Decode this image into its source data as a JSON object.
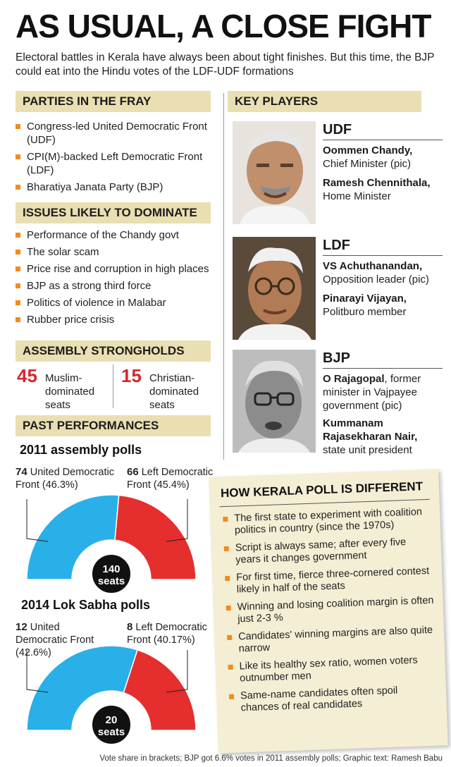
{
  "header": {
    "title": "AS USUAL, A CLOSE FIGHT",
    "intro": "Electoral battles in Kerala have always been about tight finishes. But this time, the BJP could eat into the Hindu votes of the LDF-UDF formations"
  },
  "parties": {
    "heading": "PARTIES IN THE FRAY",
    "items": [
      "Congress-led United Democratic Front (UDF)",
      "CPI(M)-backed Left Democratic Front (LDF)",
      "Bharatiya Janata Party (BJP)"
    ]
  },
  "issues": {
    "heading": "ISSUES LIKELY TO DOMINATE",
    "items": [
      "Performance of the Chandy govt",
      "The solar scam",
      "Price rise and corruption in high places",
      "BJP as a strong third force",
      "Politics of violence in Malabar",
      "Rubber price crisis"
    ]
  },
  "strongholds": {
    "heading": "ASSEMBLY STRONGHOLDS",
    "muslim": {
      "number": "45",
      "label": "Muslim-dominated seats"
    },
    "christian": {
      "number": "15",
      "label": "Christian-dominated seats"
    }
  },
  "past": {
    "heading": "PAST PERFORMANCES",
    "poll2011": {
      "title": "2011 assembly polls",
      "left_num": "74",
      "left_name": "United Democratic",
      "left_sub": "Front (46.3%)",
      "right_num": "66",
      "right_name": "Left Democratic",
      "right_sub": "Front (45.4%)",
      "total_num": "140",
      "total_word": "seats"
    },
    "poll2014": {
      "title": "2014 Lok Sabha polls",
      "left_num": "12",
      "left_name": "United",
      "left_sub1": "Democratic Front",
      "left_sub2": "(42.6%)",
      "right_num": "8",
      "right_name": "Left Democratic",
      "right_sub": "Front (40.17%)",
      "total_num": "20",
      "total_word": "seats"
    }
  },
  "chart_data": [
    {
      "type": "pie",
      "title": "2011 assembly polls",
      "categories": [
        "United Democratic Front",
        "Left Democratic Front"
      ],
      "values": [
        74,
        66
      ],
      "vote_share_percent": [
        46.3,
        45.4
      ],
      "total": 140,
      "colors": [
        "#2ab0e8",
        "#e52e2e"
      ]
    },
    {
      "type": "pie",
      "title": "2014 Lok Sabha polls",
      "categories": [
        "United Democratic Front",
        "Left Democratic Front"
      ],
      "values": [
        12,
        8
      ],
      "vote_share_percent": [
        42.6,
        40.17
      ],
      "total": 20,
      "colors": [
        "#2ab0e8",
        "#e52e2e"
      ]
    }
  ],
  "players": {
    "heading": "KEY PLAYERS",
    "udf": {
      "party": "UDF",
      "name1": "Oommen Chandy",
      "role1": "Chief Minister (pic)",
      "name2": "Ramesh Chennithala",
      "role2": "Home Minister"
    },
    "ldf": {
      "party": "LDF",
      "name1": "VS Achuthanandan",
      "role1": "Opposition leader (pic)",
      "name2": "Pinarayi Vijayan",
      "role2": "Politburo member"
    },
    "bjp": {
      "party": "BJP",
      "name1": "O Rajagopal",
      "role1": "former minister in Vajpayee government (pic)",
      "name2": "Kummanam Rajasekharan Nair",
      "role2": "state unit president"
    }
  },
  "different": {
    "heading": "HOW  KERALA POLL IS DIFFERENT",
    "items": [
      "The first state to experiment with coalition politics in country (since the 1970s)",
      "Script is always same; after every five years it changes government",
      "For first time, fierce three-cornered contest likely in half of the seats",
      "Winning and losing coalition margin is often just 2-3 %",
      "Candidates' winning margins are also quite narrow",
      "Like its healthy sex ratio, women voters outnumber men",
      "Same-name candidates often spoil chances of real candidates"
    ]
  },
  "footer": {
    "text": "Vote share in brackets; BJP got 6.6% votes in 2011 assembly polls; Graphic text: Ramesh Babu"
  },
  "colors": {
    "accent": "#f08c1e",
    "heading_bg": "#e9dfb2",
    "udf": "#2ab0e8",
    "ldf": "#e52e2e",
    "highlight_number": "#d7262c",
    "box_bg": "#f4eed4"
  }
}
